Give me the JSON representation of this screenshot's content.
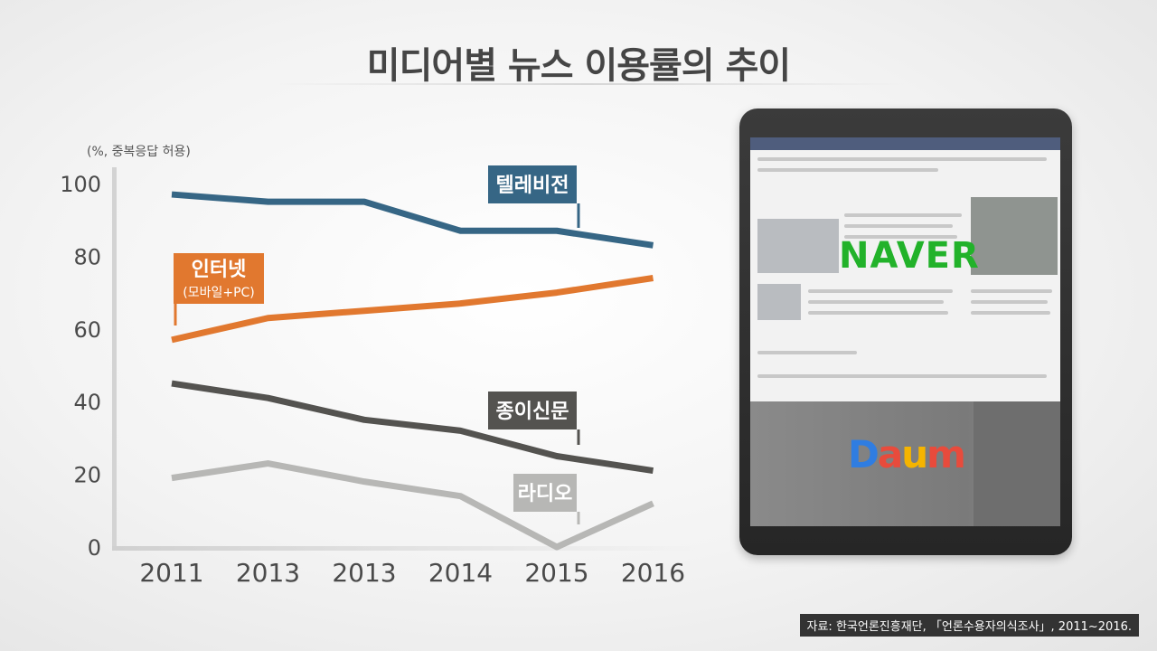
{
  "title": "미디어별 뉴스 이용률의 추이",
  "source_text": "자료: 한국언론진흥재단, 「언론수용자의식조사」, 2011~2016.",
  "chart_data": {
    "type": "line",
    "unit_label": "(%, 중복응답 허용)",
    "categories": [
      "2011",
      "2013",
      "2013",
      "2014",
      "2015",
      "2016"
    ],
    "yticks": [
      "0",
      "20",
      "40",
      "60",
      "80",
      "100"
    ],
    "ylim": [
      0,
      100
    ],
    "grid": false,
    "series": [
      {
        "name": "텔레비전",
        "values": [
          97,
          95,
          95,
          87,
          87,
          83
        ],
        "color": "#366685"
      },
      {
        "name": "인터넷",
        "sublabel": "(모바일+PC)",
        "values": [
          57,
          63,
          65,
          67,
          70,
          74
        ],
        "color": "#e1782f"
      },
      {
        "name": "종이신문",
        "values": [
          45,
          41,
          35,
          32,
          25,
          21
        ],
        "color": "#545350"
      },
      {
        "name": "라디오",
        "values": [
          19,
          23,
          18,
          14,
          0,
          12
        ],
        "color": "#b7b7b5"
      }
    ]
  },
  "tablet": {
    "naver_logo": "NAVER",
    "naver_color": "#22b22a",
    "daum_logo": [
      {
        "ch": "D",
        "color": "#2f7de1"
      },
      {
        "ch": "a",
        "color": "#e84b3c"
      },
      {
        "ch": "u",
        "color": "#f5b400"
      },
      {
        "ch": "m",
        "color": "#e84b3c"
      }
    ]
  }
}
